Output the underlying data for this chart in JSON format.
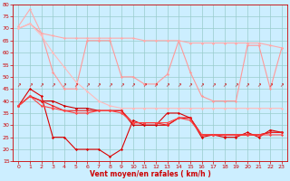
{
  "x": [
    0,
    1,
    2,
    3,
    4,
    5,
    6,
    7,
    8,
    9,
    10,
    11,
    12,
    13,
    14,
    15,
    16,
    17,
    18,
    19,
    20,
    21,
    22,
    23
  ],
  "light_series": [
    [
      70,
      72,
      68,
      52,
      45,
      45,
      65,
      65,
      65,
      50,
      50,
      47,
      47,
      51,
      65,
      52,
      42,
      40,
      40,
      40,
      63,
      63,
      45,
      62
    ],
    [
      71,
      78,
      68,
      67,
      66,
      66,
      66,
      66,
      66,
      66,
      66,
      65,
      65,
      65,
      65,
      64,
      64,
      64,
      64,
      64,
      64,
      64,
      63,
      62
    ],
    [
      70,
      72,
      67,
      60,
      54,
      48,
      44,
      40,
      38,
      37,
      37,
      37,
      37,
      37,
      37,
      37,
      37,
      37,
      37,
      37,
      37,
      37,
      37,
      37
    ]
  ],
  "light_colors": [
    "#ff9999",
    "#ffaaaa",
    "#ffbbbb"
  ],
  "dark_series": [
    [
      38,
      45,
      42,
      25,
      25,
      20,
      20,
      20,
      17,
      20,
      32,
      30,
      30,
      35,
      35,
      33,
      25,
      26,
      25,
      25,
      27,
      25,
      28,
      27
    ],
    [
      38,
      42,
      40,
      40,
      38,
      37,
      37,
      36,
      36,
      36,
      30,
      30,
      30,
      30,
      33,
      33,
      26,
      26,
      26,
      26,
      26,
      26,
      27,
      27
    ],
    [
      38,
      42,
      40,
      38,
      36,
      36,
      36,
      36,
      36,
      36,
      31,
      31,
      31,
      30,
      33,
      33,
      26,
      26,
      26,
      26,
      26,
      26,
      27,
      27
    ],
    [
      38,
      42,
      38,
      37,
      36,
      35,
      35,
      36,
      36,
      35,
      31,
      31,
      31,
      31,
      33,
      32,
      26,
      26,
      26,
      26,
      26,
      26,
      26,
      26
    ]
  ],
  "dark_colors": [
    "#dd0000",
    "#cc0000",
    "#ee2222",
    "#ff4444"
  ],
  "xlim": [
    -0.5,
    23.5
  ],
  "ylim": [
    15,
    80
  ],
  "yticks": [
    15,
    20,
    25,
    30,
    35,
    40,
    45,
    50,
    55,
    60,
    65,
    70,
    75,
    80
  ],
  "xticks": [
    0,
    1,
    2,
    3,
    4,
    5,
    6,
    7,
    8,
    9,
    10,
    11,
    12,
    13,
    14,
    15,
    16,
    17,
    18,
    19,
    20,
    21,
    22,
    23
  ],
  "xlabel": "Vent moyen/en rafales ( km/h )",
  "bg_color": "#cceeff",
  "grid_color": "#99cccc",
  "tick_color": "#cc0000",
  "label_color": "#cc0000",
  "arrow_char": "↗"
}
